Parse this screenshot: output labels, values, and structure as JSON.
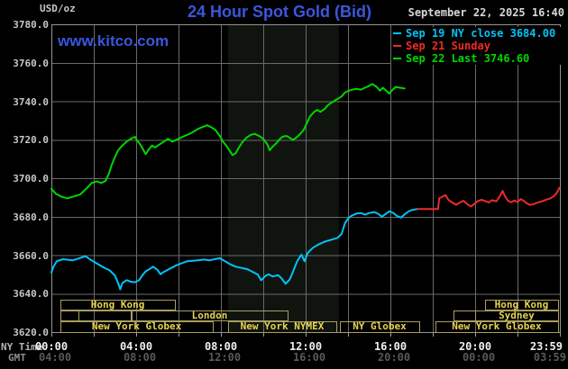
{
  "header": {
    "units_label": "USD/oz",
    "title": "24 Hour Spot Gold (Bid)",
    "watermark": "www.kitco.com",
    "datetime": "September 22, 2025 16:40",
    "title_color": "#3b57dc",
    "watermark_color": "#3b57dc",
    "datetime_color": "#d8d8d8"
  },
  "legend": {
    "items": [
      {
        "label": "Sep 19 NY close 3684.00",
        "color": "#00c4f8"
      },
      {
        "label": "Sep 21 Sunday",
        "color": "#f12929"
      },
      {
        "label": "Sep 22 Last 3746.60",
        "color": "#00d600"
      }
    ]
  },
  "axes": {
    "y_ticks": [
      "3780.0",
      "3760.0",
      "3740.0",
      "3720.0",
      "3700.0",
      "3680.0",
      "3660.0",
      "3640.0",
      "3620.0"
    ],
    "x_tick_hours": [
      0,
      4,
      8,
      12,
      16,
      20,
      24
    ],
    "ny_time": {
      "header": "NY Time",
      "labels": [
        "00:00",
        "04:00",
        "08:00",
        "12:00",
        "16:00",
        "20:00",
        "23:59"
      ]
    },
    "gmt": {
      "header": "GMT",
      "labels": [
        "04:00",
        "08:00",
        "12:00",
        "16:00",
        "20:00",
        "00:00",
        "03:59"
      ]
    },
    "grid_color": "#6b6b6b",
    "border_color": "#949494",
    "tick_color": "#9a9a9a",
    "y_label_color": "#c7c7c7",
    "ny_label_color": "#f0f0f0",
    "ny_header_color": "#b4b4b4",
    "gmt_label_color": "#595959",
    "gmt_header_color": "#8f8f8f"
  },
  "nymex_band": {
    "t1": 8.34,
    "t2": 13.57,
    "color": "#0f140e"
  },
  "sessions": {
    "box_color": "#a99f60",
    "label_color": "#e9d44f",
    "rows": [
      [
        333,
        344
      ],
      [
        345,
        356
      ],
      [
        357,
        369
      ]
    ],
    "items": [
      {
        "row": 0,
        "label": "Hong Kong",
        "t1": 0.43,
        "t2": 5.83
      },
      {
        "row": 0,
        "label": "Hong Kong",
        "t1": 20.47,
        "t2": 23.91
      },
      {
        "row": 1,
        "label": "",
        "t1": 0.43,
        "t2": 1.28
      },
      {
        "row": 1,
        "label": "",
        "t1": 1.28,
        "t2": 3.74
      },
      {
        "row": 1,
        "label": "London",
        "t1": 3.79,
        "t2": 11.15
      },
      {
        "row": 1,
        "label": "",
        "t1": 18.98,
        "t2": 20.0
      },
      {
        "row": 1,
        "label": "Sydney",
        "t1": 20.0,
        "t2": 23.91
      },
      {
        "row": 2,
        "label": "New York Globex",
        "t1": 0.43,
        "t2": 7.62
      },
      {
        "row": 2,
        "label": "New York NYMEX",
        "t1": 8.34,
        "t2": 13.45
      },
      {
        "row": 2,
        "label": "NY Globex",
        "t1": 13.62,
        "t2": 17.36
      },
      {
        "row": 2,
        "label": "New York Globex",
        "t1": 18.13,
        "t2": 23.91
      }
    ]
  },
  "chart_data": {
    "type": "line",
    "title": "24 Hour Spot Gold (Bid)",
    "xlabel": "NY Time (hours)",
    "ylabel": "USD/oz",
    "x_range": [
      0,
      24
    ],
    "y_range": [
      3620,
      3780
    ],
    "y_tick_step": 20,
    "x_tick_step_hours": 4,
    "grid": true,
    "legend_position": "top-right",
    "series": [
      {
        "name": "Sep 19 NY close 3684.00",
        "color": "#00c4f8",
        "points": [
          [
            0,
            3651
          ],
          [
            0.1,
            3654
          ],
          [
            0.25,
            3656.8
          ],
          [
            0.55,
            3657.9
          ],
          [
            1,
            3657.3
          ],
          [
            1.4,
            3658.7
          ],
          [
            1.6,
            3659.5
          ],
          [
            1.85,
            3657.6
          ],
          [
            2.15,
            3655.7
          ],
          [
            2.45,
            3653.7
          ],
          [
            2.75,
            3652.1
          ],
          [
            3,
            3649.4
          ],
          [
            3.15,
            3645.5
          ],
          [
            3.25,
            3642.2
          ],
          [
            3.35,
            3645.5
          ],
          [
            3.55,
            3647
          ],
          [
            3.75,
            3646.2
          ],
          [
            3.95,
            3645.9
          ],
          [
            4.15,
            3647.1
          ],
          [
            4.3,
            3649.6
          ],
          [
            4.45,
            3651.6
          ],
          [
            4.65,
            3652.9
          ],
          [
            4.8,
            3654
          ],
          [
            5,
            3652.4
          ],
          [
            5.15,
            3650.1
          ],
          [
            5.3,
            3651.3
          ],
          [
            5.5,
            3652.4
          ],
          [
            5.65,
            3653.3
          ],
          [
            5.9,
            3654.7
          ],
          [
            6.15,
            3655.8
          ],
          [
            6.4,
            3656.8
          ],
          [
            6.7,
            3657.1
          ],
          [
            6.95,
            3657.4
          ],
          [
            7.2,
            3657.7
          ],
          [
            7.45,
            3657.3
          ],
          [
            7.7,
            3657.9
          ],
          [
            7.95,
            3658.4
          ],
          [
            8.2,
            3656.8
          ],
          [
            8.45,
            3655.2
          ],
          [
            8.7,
            3654
          ],
          [
            9,
            3653.3
          ],
          [
            9.25,
            3652.7
          ],
          [
            9.5,
            3651.3
          ],
          [
            9.75,
            3649.9
          ],
          [
            9.9,
            3646.9
          ],
          [
            10.1,
            3649.2
          ],
          [
            10.25,
            3650.1
          ],
          [
            10.45,
            3648.9
          ],
          [
            10.7,
            3649.6
          ],
          [
            10.85,
            3648.1
          ],
          [
            11.05,
            3645.1
          ],
          [
            11.25,
            3647.4
          ],
          [
            11.4,
            3651.3
          ],
          [
            11.6,
            3656.8
          ],
          [
            11.8,
            3660.3
          ],
          [
            11.95,
            3656.8
          ],
          [
            12.1,
            3661.1
          ],
          [
            12.35,
            3663.9
          ],
          [
            12.6,
            3665.5
          ],
          [
            12.9,
            3667
          ],
          [
            13.2,
            3668
          ],
          [
            13.5,
            3669
          ],
          [
            13.7,
            3671
          ],
          [
            13.85,
            3676.5
          ],
          [
            14,
            3679
          ],
          [
            14.15,
            3680.4
          ],
          [
            14.4,
            3681.6
          ],
          [
            14.6,
            3681.9
          ],
          [
            14.8,
            3681.1
          ],
          [
            15,
            3681.9
          ],
          [
            15.25,
            3682.4
          ],
          [
            15.45,
            3681.3
          ],
          [
            15.6,
            3680
          ],
          [
            15.8,
            3681.6
          ],
          [
            15.95,
            3682.8
          ],
          [
            16.15,
            3681.9
          ],
          [
            16.3,
            3680.4
          ],
          [
            16.5,
            3679.5
          ],
          [
            16.65,
            3681
          ],
          [
            16.85,
            3682.7
          ],
          [
            17,
            3683.4
          ],
          [
            17.15,
            3683.7
          ],
          [
            17.3,
            3684
          ]
        ]
      },
      {
        "name": "Sep 21 Sunday",
        "color": "#f12929",
        "points": [
          [
            17.3,
            3684
          ],
          [
            18.25,
            3684
          ],
          [
            18.3,
            3689.5
          ],
          [
            18.45,
            3690.4
          ],
          [
            18.6,
            3691.2
          ],
          [
            18.75,
            3688.6
          ],
          [
            18.95,
            3687.2
          ],
          [
            19.1,
            3686.2
          ],
          [
            19.3,
            3687.5
          ],
          [
            19.45,
            3688.3
          ],
          [
            19.6,
            3686.8
          ],
          [
            19.8,
            3685.3
          ],
          [
            19.95,
            3686.5
          ],
          [
            20.1,
            3688
          ],
          [
            20.3,
            3688.8
          ],
          [
            20.5,
            3688
          ],
          [
            20.65,
            3687.4
          ],
          [
            20.8,
            3688.6
          ],
          [
            21,
            3688
          ],
          [
            21.15,
            3690.3
          ],
          [
            21.3,
            3693.4
          ],
          [
            21.4,
            3690.8
          ],
          [
            21.55,
            3688.3
          ],
          [
            21.7,
            3687.5
          ],
          [
            21.85,
            3688.4
          ],
          [
            22,
            3687.6
          ],
          [
            22.15,
            3689.2
          ],
          [
            22.3,
            3688.2
          ],
          [
            22.45,
            3686.8
          ],
          [
            22.6,
            3686.1
          ],
          [
            22.75,
            3686.5
          ],
          [
            22.95,
            3687.3
          ],
          [
            23.15,
            3688
          ],
          [
            23.35,
            3688.8
          ],
          [
            23.55,
            3689.5
          ],
          [
            23.7,
            3690.5
          ],
          [
            23.85,
            3692.3
          ],
          [
            23.98,
            3695
          ]
        ]
      },
      {
        "name": "Sep 22 Last 3746.60",
        "color": "#00d600",
        "points": [
          [
            0,
            3694.5
          ],
          [
            0.2,
            3692
          ],
          [
            0.45,
            3690.5
          ],
          [
            0.75,
            3689.5
          ],
          [
            1.05,
            3690.5
          ],
          [
            1.35,
            3691.5
          ],
          [
            1.6,
            3694
          ],
          [
            1.9,
            3697.5
          ],
          [
            2.15,
            3698.3
          ],
          [
            2.35,
            3697.5
          ],
          [
            2.55,
            3698.5
          ],
          [
            2.7,
            3702
          ],
          [
            2.85,
            3707
          ],
          [
            3,
            3711
          ],
          [
            3.15,
            3714.5
          ],
          [
            3.35,
            3717
          ],
          [
            3.55,
            3719
          ],
          [
            3.75,
            3720.5
          ],
          [
            3.95,
            3721.5
          ],
          [
            4.05,
            3719.5
          ],
          [
            4.2,
            3717.5
          ],
          [
            4.35,
            3714.5
          ],
          [
            4.45,
            3712.5
          ],
          [
            4.6,
            3715
          ],
          [
            4.75,
            3717
          ],
          [
            4.9,
            3716
          ],
          [
            5.1,
            3717.5
          ],
          [
            5.3,
            3719
          ],
          [
            5.5,
            3720.5
          ],
          [
            5.7,
            3719
          ],
          [
            5.9,
            3720
          ],
          [
            6.1,
            3721
          ],
          [
            6.3,
            3722
          ],
          [
            6.6,
            3723.5
          ],
          [
            6.9,
            3725.5
          ],
          [
            7.1,
            3726.5
          ],
          [
            7.35,
            3727.5
          ],
          [
            7.55,
            3726.5
          ],
          [
            7.75,
            3725
          ],
          [
            7.95,
            3722
          ],
          [
            8.1,
            3719
          ],
          [
            8.25,
            3717
          ],
          [
            8.4,
            3714.5
          ],
          [
            8.55,
            3712
          ],
          [
            8.7,
            3713
          ],
          [
            8.85,
            3716
          ],
          [
            9,
            3718.5
          ],
          [
            9.2,
            3721
          ],
          [
            9.4,
            3722.5
          ],
          [
            9.6,
            3723
          ],
          [
            9.8,
            3722
          ],
          [
            10,
            3720.5
          ],
          [
            10.2,
            3717.5
          ],
          [
            10.3,
            3714.5
          ],
          [
            10.45,
            3716.5
          ],
          [
            10.6,
            3718
          ],
          [
            10.75,
            3720
          ],
          [
            10.9,
            3721.5
          ],
          [
            11.1,
            3722
          ],
          [
            11.25,
            3721
          ],
          [
            11.4,
            3720
          ],
          [
            11.55,
            3721
          ],
          [
            11.7,
            3722.5
          ],
          [
            11.9,
            3725
          ],
          [
            12.05,
            3728.5
          ],
          [
            12.2,
            3732
          ],
          [
            12.4,
            3734.5
          ],
          [
            12.55,
            3735.5
          ],
          [
            12.7,
            3734.5
          ],
          [
            12.9,
            3736
          ],
          [
            13.05,
            3738
          ],
          [
            13.25,
            3739.5
          ],
          [
            13.4,
            3740.5
          ],
          [
            13.55,
            3741.5
          ],
          [
            13.7,
            3742.5
          ],
          [
            13.85,
            3744.5
          ],
          [
            14.05,
            3745.5
          ],
          [
            14.2,
            3746
          ],
          [
            14.4,
            3746.5
          ],
          [
            14.6,
            3746
          ],
          [
            14.8,
            3747
          ],
          [
            15,
            3748
          ],
          [
            15.15,
            3749
          ],
          [
            15.35,
            3747.5
          ],
          [
            15.5,
            3745.5
          ],
          [
            15.65,
            3747
          ],
          [
            15.8,
            3745.5
          ],
          [
            15.95,
            3744
          ],
          [
            16.1,
            3746
          ],
          [
            16.25,
            3747.5
          ],
          [
            16.45,
            3747
          ],
          [
            16.6,
            3746.8
          ],
          [
            16.67,
            3746.6
          ]
        ]
      }
    ]
  }
}
